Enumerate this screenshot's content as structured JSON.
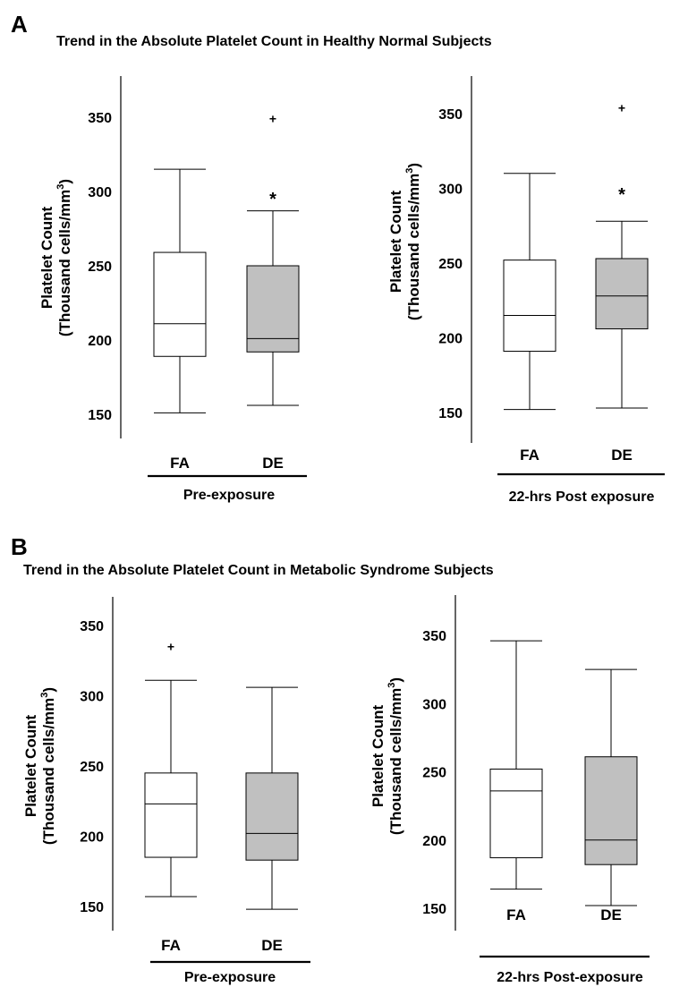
{
  "panels": [
    {
      "letter": "A",
      "title": "Trend in the Absolute Platelet Count in Healthy Normal Subjects"
    },
    {
      "letter": "B",
      "title": "Trend in the Absolute Platelet Count in Metabolic Syndrome Subjects"
    }
  ],
  "chart_data": [
    {
      "type": "box",
      "panel": "A",
      "group_label": "Pre-exposure",
      "ylabel_line1": "Platelet Count",
      "ylabel_line2": "(Thousand cells/mm",
      "ylabel_sup": "3",
      "ylabel_close": ")",
      "yticks": [
        150,
        200,
        250,
        300,
        350
      ],
      "ylim": [
        140,
        375
      ],
      "boxes": [
        {
          "category": "FA",
          "fill": "#ffffff",
          "whisker_low": 151,
          "q1": 189,
          "median": 211,
          "q3": 259,
          "whisker_high": 315,
          "outliers": [],
          "extremes": []
        },
        {
          "category": "DE",
          "fill": "#c0c0c0",
          "whisker_low": 156,
          "q1": 192,
          "median": 201,
          "q3": 250,
          "whisker_high": 287,
          "outliers": [
            349
          ],
          "extremes": [
            297
          ]
        }
      ]
    },
    {
      "type": "box",
      "panel": "A",
      "group_label": "22-hrs Post exposure",
      "ylabel_line1": "Platelet Count",
      "ylabel_line2": "(Thousand cells/mm",
      "ylabel_sup": "3",
      "ylabel_close": ")",
      "yticks": [
        150,
        200,
        250,
        300,
        350
      ],
      "ylim": [
        130,
        375
      ],
      "boxes": [
        {
          "category": "FA",
          "fill": "#ffffff",
          "whisker_low": 152,
          "q1": 191,
          "median": 215,
          "q3": 252,
          "whisker_high": 310,
          "outliers": [],
          "extremes": []
        },
        {
          "category": "DE",
          "fill": "#c0c0c0",
          "whisker_low": 153,
          "q1": 206,
          "median": 228,
          "q3": 253,
          "whisker_high": 278,
          "outliers": [
            354
          ],
          "extremes": [
            298
          ]
        }
      ]
    },
    {
      "type": "box",
      "panel": "B",
      "group_label": "Pre-exposure",
      "ylabel_line1": "Platelet Count",
      "ylabel_line2": "(Thousand cells/mm",
      "ylabel_sup": "3",
      "ylabel_close": ")",
      "yticks": [
        150,
        200,
        250,
        300,
        350
      ],
      "ylim": [
        140,
        370
      ],
      "boxes": [
        {
          "category": "FA",
          "fill": "#ffffff",
          "whisker_low": 157,
          "q1": 185,
          "median": 223,
          "q3": 245,
          "whisker_high": 311,
          "outliers": [
            335
          ],
          "extremes": []
        },
        {
          "category": "DE",
          "fill": "#c0c0c0",
          "whisker_low": 148,
          "q1": 183,
          "median": 202,
          "q3": 245,
          "whisker_high": 306,
          "outliers": [],
          "extremes": []
        }
      ]
    },
    {
      "type": "box",
      "panel": "B",
      "group_label": "22-hrs Post-exposure",
      "ylabel_line1": "Platelet Count",
      "ylabel_line2": "(Thousand cells/mm",
      "ylabel_sup": "3",
      "ylabel_close": ")",
      "yticks": [
        150,
        200,
        250,
        300,
        350
      ],
      "ylim": [
        137,
        370
      ],
      "boxes": [
        {
          "category": "FA",
          "fill": "#ffffff",
          "whisker_low": 164,
          "q1": 187,
          "median": 236,
          "q3": 252,
          "whisker_high": 346,
          "outliers": [],
          "extremes": []
        },
        {
          "category": "DE",
          "fill": "#c0c0c0",
          "whisker_low": 152,
          "q1": 182,
          "median": 200,
          "q3": 261,
          "whisker_high": 325,
          "outliers": [],
          "extremes": []
        }
      ]
    }
  ]
}
